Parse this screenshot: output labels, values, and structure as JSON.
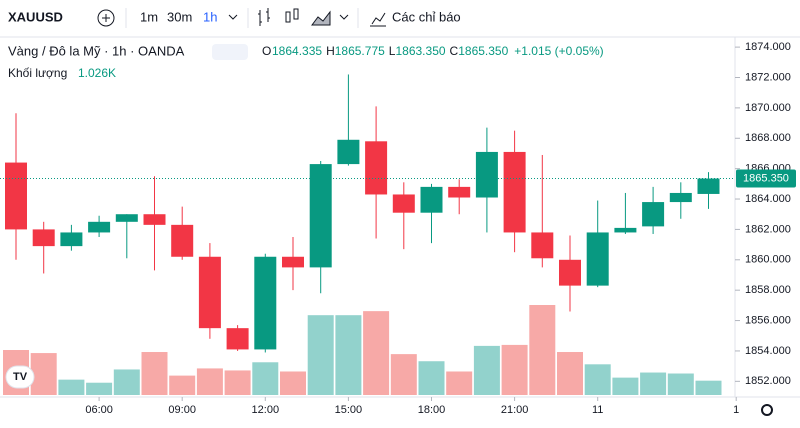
{
  "toolbar": {
    "symbol": "XAUUSD",
    "intervals": [
      "1m",
      "30m",
      "1h"
    ],
    "indicators": "Các chỉ báo"
  },
  "chart_data": {
    "type": "candlestick",
    "title": "Vàng / Đô la Mỹ · 1h · OANDA",
    "legend": {
      "o": "O",
      "open": "1864.335",
      "h": "H",
      "high": "1865.775",
      "l": "L",
      "low": "1863.350",
      "c": "C",
      "close": "1865.350",
      "change": "+1.015 (+0.05%)"
    },
    "volume_title": "Khối lượng",
    "volume_label": "1.026K",
    "last_price_label": "1865.350",
    "up_color": "#089981",
    "down_color": "#f23645",
    "up_volume_color": "#92d2cc",
    "down_volume_color": "#f7a9a7",
    "open": [
      1866.4,
      1862.0,
      1860.9,
      1861.8,
      1862.5,
      1863.0,
      1862.3,
      1860.2,
      1855.5,
      1854.1,
      1860.2,
      1859.5,
      1866.3,
      1867.8,
      1864.3,
      1863.1,
      1864.8,
      1864.1,
      1867.1,
      1861.8,
      1860.0,
      1858.3,
      1861.8,
      1862.2,
      1863.8,
      1864.335
    ],
    "high": [
      1869.65,
      1862.5,
      1862.3,
      1862.9,
      1863.0,
      1865.5,
      1863.5,
      1861.1,
      1855.7,
      1860.4,
      1861.5,
      1866.5,
      1872.2,
      1870.1,
      1865.1,
      1865.0,
      1865.3,
      1868.7,
      1868.5,
      1866.9,
      1861.6,
      1863.9,
      1864.4,
      1864.8,
      1865.1,
      1865.775
    ],
    "low": [
      1860.0,
      1859.1,
      1860.6,
      1861.5,
      1860.1,
      1859.3,
      1860.0,
      1854.8,
      1854.0,
      1853.9,
      1858.0,
      1857.8,
      1866.2,
      1861.4,
      1860.7,
      1861.1,
      1863.0,
      1861.8,
      1860.5,
      1859.5,
      1856.6,
      1858.2,
      1861.7,
      1861.7,
      1862.7,
      1863.35
    ],
    "close": [
      1862.0,
      1860.9,
      1861.8,
      1862.5,
      1863.0,
      1862.3,
      1860.2,
      1855.5,
      1854.1,
      1860.2,
      1859.5,
      1866.3,
      1867.9,
      1864.3,
      1863.1,
      1864.8,
      1864.1,
      1867.1,
      1861.8,
      1860.1,
      1858.3,
      1861.8,
      1862.1,
      1863.8,
      1864.4,
      1865.35
    ],
    "volume": [
      3225,
      3005,
      1100,
      880,
      1830,
      3080,
      1390,
      1905,
      1760,
      2345,
      1685,
      5720,
      5720,
      6010,
      2930,
      2420,
      1685,
      3520,
      3590,
      6450,
      3080,
      2200,
      1245,
      1610,
      1540,
      1026
    ],
    "xticks": [
      {
        "value": 3,
        "label": "06:00"
      },
      {
        "value": 6,
        "label": "09:00"
      },
      {
        "value": 9,
        "label": "12:00"
      },
      {
        "value": 12,
        "label": "15:00"
      },
      {
        "value": 15,
        "label": "18:00"
      },
      {
        "value": 18,
        "label": "21:00"
      },
      {
        "value": 21,
        "label": "11"
      },
      {
        "value": 26,
        "label": "1"
      }
    ],
    "ylim": [
      1851.1,
      1874.6
    ],
    "yticks": [
      {
        "value": 1852,
        "label": "1852.000"
      },
      {
        "value": 1854,
        "label": "1854.000"
      },
      {
        "value": 1856,
        "label": "1856.000"
      },
      {
        "value": 1858,
        "label": "1858.000"
      },
      {
        "value": 1860,
        "label": "1860.000"
      },
      {
        "value": 1862,
        "label": "1862.000"
      },
      {
        "value": 1864,
        "label": "1864.000"
      },
      {
        "value": 1866,
        "label": "1866.000"
      },
      {
        "value": 1868,
        "label": "1868.000"
      },
      {
        "value": 1870,
        "label": "1870.000"
      },
      {
        "value": 1872,
        "label": "1872.000"
      },
      {
        "value": 1874,
        "label": "1874.000"
      }
    ]
  }
}
